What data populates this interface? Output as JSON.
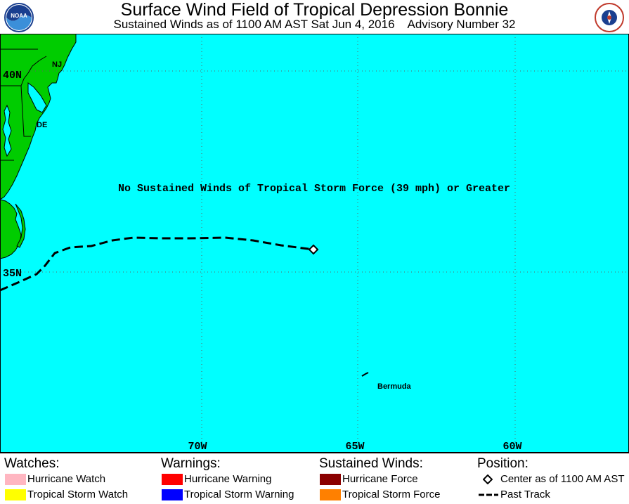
{
  "header": {
    "title": "Surface Wind Field of Tropical Depression Bonnie",
    "subtitle": "Sustained Winds as of 1100 AM AST Sat Jun 4, 2016    Advisory Number 32"
  },
  "logos": {
    "left": "noaa-logo",
    "right": "national-weather-service-logo"
  },
  "map": {
    "ocean_color": "#00ffff",
    "land_color": "#00cc00",
    "message": "No Sustained Winds of Tropical Storm Force (39 mph) or Greater",
    "lat_labels": [
      "40N",
      "35N"
    ],
    "lon_labels": [
      "70W",
      "65W",
      "60W"
    ],
    "state_labels": [
      "NJ",
      "DE"
    ],
    "place_labels": [
      "Bermuda"
    ]
  },
  "legend": {
    "watches": {
      "heading": "Watches:",
      "items": [
        {
          "label": "Hurricane Watch",
          "color": "#ffb6c1"
        },
        {
          "label": "Tropical Storm Watch",
          "color": "#ffff00"
        }
      ]
    },
    "warnings": {
      "heading": "Warnings:",
      "items": [
        {
          "label": "Hurricane Warning",
          "color": "#ff0000"
        },
        {
          "label": "Tropical Storm Warning",
          "color": "#0000ff"
        }
      ]
    },
    "winds": {
      "heading": "Sustained Winds:",
      "items": [
        {
          "label": "Hurricane Force",
          "color": "#8b0000"
        },
        {
          "label": "Tropical Storm Force",
          "color": "#ff8000"
        }
      ]
    },
    "position": {
      "heading": "Position:",
      "items": [
        {
          "label": "Center as of 1100 AM AST",
          "icon": "diamond-icon"
        },
        {
          "label": "Past Track",
          "icon": "dashed-line-icon"
        }
      ]
    }
  }
}
